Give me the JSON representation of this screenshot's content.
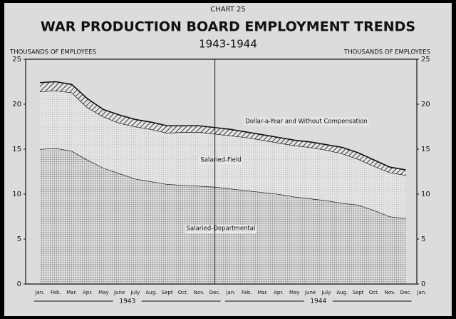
{
  "chart_data": {
    "type": "stacked_area",
    "chart_number": "CHART 25",
    "title": "WAR PRODUCTION BOARD EMPLOYMENT TRENDS",
    "subtitle": "1943-1944",
    "y_label": "THOUSANDS OF EMPLOYEES",
    "y2_label": "THOUSANDS OF EMPLOYEES",
    "categories": [
      "Jan.",
      "Feb.",
      "Mar.",
      "Apr.",
      "May",
      "June",
      "July",
      "Aug.",
      "Sept",
      "Oct.",
      "Nov.",
      "Dec.",
      "Jan.",
      "Feb.",
      "Mar.",
      "Apr.",
      "May",
      "June",
      "July",
      "Aug.",
      "Sept",
      "Oct.",
      "Nov.",
      "Dec.",
      "Jan."
    ],
    "year_labels": [
      "1943",
      "1944"
    ],
    "series": [
      {
        "name": "Salaried-Departmental",
        "color": "#8f8f8f",
        "pattern": "dots",
        "values": [
          15.0,
          15.1,
          14.8,
          13.8,
          12.9,
          12.3,
          11.7,
          11.4,
          11.1,
          11.0,
          10.9,
          10.8,
          10.6,
          10.4,
          10.2,
          10.0,
          9.7,
          9.5,
          9.3,
          9.0,
          8.8,
          8.2,
          7.5,
          7.3,
          null
        ]
      },
      {
        "name": "Salaried-Field",
        "color": "#bdbdbd",
        "pattern": "dots",
        "values": [
          6.4,
          6.4,
          6.5,
          5.8,
          5.7,
          5.6,
          5.8,
          5.8,
          5.7,
          5.9,
          6.0,
          5.9,
          5.9,
          5.9,
          5.8,
          5.7,
          5.7,
          5.7,
          5.6,
          5.5,
          5.1,
          4.9,
          4.9,
          4.8,
          null
        ]
      },
      {
        "name": "Dollar-a-Year and Without Compensation",
        "color": "#3a3a3a",
        "pattern": "hatch",
        "values": [
          1.0,
          1.0,
          0.9,
          1.0,
          0.8,
          0.9,
          0.8,
          0.8,
          0.8,
          0.7,
          0.7,
          0.7,
          0.7,
          0.6,
          0.6,
          0.6,
          0.6,
          0.6,
          0.6,
          0.7,
          0.7,
          0.7,
          0.6,
          0.6,
          null
        ]
      }
    ],
    "ylim": [
      0,
      25
    ],
    "yticks": [
      0,
      5,
      10,
      15,
      20,
      25
    ],
    "y2lim": [
      0,
      25
    ],
    "y2ticks": [
      0,
      5,
      10,
      15,
      20,
      25
    ],
    "grid": false
  }
}
